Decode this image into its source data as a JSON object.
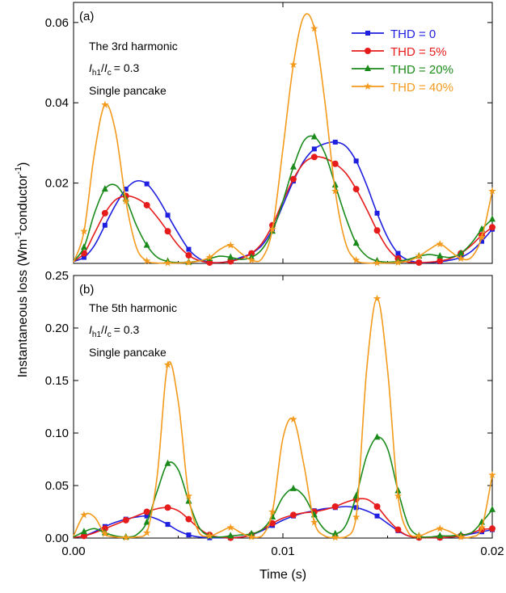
{
  "chart_data": [
    {
      "type": "line",
      "panel_label": "(a)",
      "annotation_lines": [
        "The 3rd harmonic",
        "/ = 0.3",
        "Single pancake"
      ],
      "annotation_ratio": {
        "i1": "I",
        "i1_sub": "h1",
        "i2": "I",
        "i2_sub": "c",
        "value": "= 0.3"
      },
      "xlim": [
        0,
        0.02
      ],
      "ylim": [
        0,
        0.065
      ],
      "yticks": [
        0.02,
        0.04,
        0.06
      ],
      "ytick_labels": [
        "0.02",
        "0.04",
        "0.06"
      ],
      "series": [
        {
          "name": "THD = 0",
          "color": "#1f1fe0",
          "marker": "square",
          "x": [
            0,
            0.0005,
            0.001,
            0.0015,
            0.002,
            0.0025,
            0.003,
            0.0035,
            0.004,
            0.0045,
            0.005,
            0.0055,
            0.006,
            0.0065,
            0.007,
            0.0075,
            0.008,
            0.0085,
            0.009,
            0.0095,
            0.01,
            0.0105,
            0.011,
            0.0115,
            0.012,
            0.0125,
            0.013,
            0.0135,
            0.014,
            0.0145,
            0.015,
            0.0155,
            0.016,
            0.0165,
            0.017,
            0.0175,
            0.018,
            0.0185,
            0.019,
            0.0195,
            0.02
          ],
          "y": [
            0.0005,
            0.0015,
            0.0045,
            0.0095,
            0.0145,
            0.0185,
            0.0205,
            0.0198,
            0.0165,
            0.012,
            0.0075,
            0.0035,
            0.0012,
            0.0003,
            0.0002,
            0.0006,
            0.0015,
            0.0025,
            0.0045,
            0.0085,
            0.0145,
            0.0205,
            0.0255,
            0.0285,
            0.0298,
            0.0302,
            0.0292,
            0.0255,
            0.0195,
            0.0125,
            0.0065,
            0.0025,
            0.0008,
            0.0002,
            0.0002,
            0.0004,
            0.0008,
            0.0015,
            0.003,
            0.0055,
            0.0085
          ]
        },
        {
          "name": "THD = 5%",
          "color": "#e61c1c",
          "marker": "circle",
          "x": [
            0,
            0.0005,
            0.001,
            0.0015,
            0.002,
            0.0025,
            0.003,
            0.0035,
            0.004,
            0.0045,
            0.005,
            0.0055,
            0.006,
            0.0065,
            0.007,
            0.0075,
            0.008,
            0.0085,
            0.009,
            0.0095,
            0.01,
            0.0105,
            0.011,
            0.0115,
            0.012,
            0.0125,
            0.013,
            0.0135,
            0.014,
            0.0145,
            0.015,
            0.0155,
            0.016,
            0.0165,
            0.017,
            0.0175,
            0.018,
            0.0185,
            0.019,
            0.0195,
            0.02
          ],
          "y": [
            0.0005,
            0.0025,
            0.0075,
            0.0125,
            0.0158,
            0.0168,
            0.0162,
            0.0145,
            0.0115,
            0.008,
            0.0045,
            0.002,
            0.0007,
            0.0002,
            0.0002,
            0.0005,
            0.0012,
            0.0025,
            0.005,
            0.0095,
            0.0155,
            0.021,
            0.025,
            0.0265,
            0.0262,
            0.0248,
            0.0225,
            0.0185,
            0.0135,
            0.0082,
            0.0038,
            0.0012,
            0.0003,
            0.0002,
            0.0003,
            0.0006,
            0.0012,
            0.0025,
            0.0045,
            0.007,
            0.009
          ]
        },
        {
          "name": "THD = 20%",
          "color": "#1a8a1a",
          "marker": "triangle",
          "x": [
            0,
            0.0005,
            0.001,
            0.0015,
            0.002,
            0.0025,
            0.003,
            0.0035,
            0.004,
            0.0045,
            0.005,
            0.0055,
            0.006,
            0.0065,
            0.007,
            0.0075,
            0.008,
            0.0085,
            0.009,
            0.0095,
            0.01,
            0.0105,
            0.011,
            0.0115,
            0.012,
            0.0125,
            0.013,
            0.0135,
            0.014,
            0.0145,
            0.015,
            0.0155,
            0.016,
            0.0165,
            0.017,
            0.0175,
            0.018,
            0.0185,
            0.019,
            0.0195,
            0.02
          ],
          "y": [
            0.0005,
            0.004,
            0.0125,
            0.0185,
            0.0195,
            0.016,
            0.0095,
            0.0045,
            0.0015,
            0.0005,
            0.0002,
            0.0003,
            0.0006,
            0.0012,
            0.0018,
            0.0015,
            0.001,
            0.0015,
            0.0035,
            0.008,
            0.0155,
            0.024,
            0.0305,
            0.0315,
            0.0275,
            0.0195,
            0.0115,
            0.005,
            0.0018,
            0.0006,
            0.0003,
            0.0005,
            0.001,
            0.0018,
            0.0022,
            0.0018,
            0.0015,
            0.0025,
            0.005,
            0.0085,
            0.011
          ]
        },
        {
          "name": "THD = 40%",
          "color": "#f39a1c",
          "marker": "star",
          "x": [
            0,
            0.0005,
            0.001,
            0.0015,
            0.002,
            0.0025,
            0.003,
            0.0035,
            0.004,
            0.0045,
            0.005,
            0.0055,
            0.006,
            0.0065,
            0.007,
            0.0075,
            0.008,
            0.0085,
            0.009,
            0.0095,
            0.01,
            0.0105,
            0.011,
            0.0115,
            0.012,
            0.0125,
            0.013,
            0.0135,
            0.014,
            0.0145,
            0.015,
            0.0155,
            0.016,
            0.0165,
            0.017,
            0.0175,
            0.018,
            0.0185,
            0.019,
            0.0195,
            0.02
          ],
          "y": [
            0.0003,
            0.008,
            0.0275,
            0.0395,
            0.033,
            0.0155,
            0.004,
            0.0006,
            0.0001,
            0.0001,
            0.0001,
            0.0002,
            0.0006,
            0.0015,
            0.0035,
            0.0045,
            0.0025,
            0.0008,
            0.0012,
            0.0085,
            0.0285,
            0.0495,
            0.0615,
            0.0585,
            0.0405,
            0.018,
            0.005,
            0.0008,
            0.0001,
            0.0001,
            0.0001,
            0.0002,
            0.0006,
            0.0018,
            0.0035,
            0.0048,
            0.003,
            0.0012,
            0.0015,
            0.0065,
            0.018
          ]
        }
      ]
    },
    {
      "type": "line",
      "panel_label": "(b)",
      "annotation_lines": [
        "The 5th harmonic",
        "/ = 0.3",
        "Single pancake"
      ],
      "annotation_ratio": {
        "i1": "I",
        "i1_sub": "h1",
        "i2": "I",
        "i2_sub": "c",
        "value": "= 0.3"
      },
      "xlim": [
        0,
        0.02
      ],
      "ylim": [
        0,
        0.25
      ],
      "yticks": [
        0,
        0.05,
        0.1,
        0.15,
        0.2,
        0.25
      ],
      "ytick_labels": [
        "0.00",
        "0.05",
        "0.10",
        "0.15",
        "0.20",
        "0.25"
      ],
      "xticks": [
        0,
        0.01,
        0.02
      ],
      "xtick_labels": [
        "0.00",
        "0.01",
        "0.02"
      ],
      "series": [
        {
          "name": "THD = 0",
          "color": "#1f1fe0",
          "marker": "square",
          "x": [
            0,
            0.0005,
            0.001,
            0.0015,
            0.002,
            0.0025,
            0.003,
            0.0035,
            0.004,
            0.0045,
            0.005,
            0.0055,
            0.006,
            0.0065,
            0.007,
            0.0075,
            0.008,
            0.0085,
            0.009,
            0.0095,
            0.01,
            0.0105,
            0.011,
            0.0115,
            0.012,
            0.0125,
            0.013,
            0.0135,
            0.014,
            0.0145,
            0.015,
            0.0155,
            0.016,
            0.0165,
            0.017,
            0.0175,
            0.018,
            0.0185,
            0.019,
            0.0195,
            0.02
          ],
          "y": [
            0.0005,
            0.002,
            0.006,
            0.011,
            0.015,
            0.018,
            0.02,
            0.021,
            0.018,
            0.013,
            0.007,
            0.003,
            0.001,
            0.0003,
            0.0002,
            0.0003,
            0.001,
            0.003,
            0.007,
            0.012,
            0.017,
            0.021,
            0.024,
            0.026,
            0.028,
            0.029,
            0.03,
            0.029,
            0.026,
            0.021,
            0.014,
            0.007,
            0.002,
            0.0005,
            0.0002,
            0.0003,
            0.001,
            0.002,
            0.004,
            0.006,
            0.008
          ]
        },
        {
          "name": "THD = 5%",
          "color": "#e61c1c",
          "marker": "circle",
          "x": [
            0,
            0.0005,
            0.001,
            0.0015,
            0.002,
            0.0025,
            0.003,
            0.0035,
            0.004,
            0.0045,
            0.005,
            0.0055,
            0.006,
            0.0065,
            0.007,
            0.0075,
            0.008,
            0.0085,
            0.009,
            0.0095,
            0.01,
            0.0105,
            0.011,
            0.0115,
            0.012,
            0.0125,
            0.013,
            0.0135,
            0.014,
            0.0145,
            0.015,
            0.0155,
            0.016,
            0.0165,
            0.017,
            0.0175,
            0.018,
            0.0185,
            0.019,
            0.0195,
            0.02
          ],
          "y": [
            0.0005,
            0.002,
            0.005,
            0.009,
            0.013,
            0.017,
            0.021,
            0.025,
            0.028,
            0.029,
            0.026,
            0.018,
            0.009,
            0.003,
            0.0008,
            0.0003,
            0.0008,
            0.003,
            0.008,
            0.014,
            0.019,
            0.022,
            0.024,
            0.025,
            0.027,
            0.03,
            0.034,
            0.037,
            0.037,
            0.03,
            0.018,
            0.008,
            0.002,
            0.0005,
            0.0003,
            0.0005,
            0.001,
            0.002,
            0.005,
            0.008,
            0.009
          ]
        },
        {
          "name": "THD = 20%",
          "color": "#1a8a1a",
          "marker": "triangle",
          "x": [
            0,
            0.0005,
            0.001,
            0.0015,
            0.002,
            0.0025,
            0.003,
            0.0035,
            0.004,
            0.0045,
            0.005,
            0.0055,
            0.006,
            0.0065,
            0.007,
            0.0075,
            0.008,
            0.0085,
            0.009,
            0.0095,
            0.01,
            0.0105,
            0.011,
            0.0115,
            0.012,
            0.0125,
            0.013,
            0.0135,
            0.014,
            0.0145,
            0.015,
            0.0155,
            0.016,
            0.0165,
            0.017,
            0.0175,
            0.018,
            0.0185,
            0.019,
            0.0195,
            0.02
          ],
          "y": [
            0.001,
            0.006,
            0.009,
            0.005,
            0.002,
            0.001,
            0.003,
            0.015,
            0.045,
            0.071,
            0.065,
            0.035,
            0.01,
            0.002,
            0.001,
            0.002,
            0.003,
            0.004,
            0.008,
            0.02,
            0.039,
            0.047,
            0.04,
            0.022,
            0.008,
            0.004,
            0.012,
            0.04,
            0.078,
            0.096,
            0.085,
            0.045,
            0.012,
            0.002,
            0.001,
            0.002,
            0.002,
            0.003,
            0.005,
            0.015,
            0.027
          ]
        },
        {
          "name": "THD = 40%",
          "color": "#f39a1c",
          "marker": "star",
          "x": [
            0,
            0.0005,
            0.001,
            0.0015,
            0.002,
            0.0025,
            0.003,
            0.0035,
            0.004,
            0.0045,
            0.005,
            0.0055,
            0.006,
            0.0065,
            0.007,
            0.0075,
            0.008,
            0.0085,
            0.009,
            0.0095,
            0.01,
            0.0105,
            0.011,
            0.0115,
            0.012,
            0.0125,
            0.013,
            0.0135,
            0.014,
            0.0145,
            0.015,
            0.0155,
            0.016,
            0.0165,
            0.017,
            0.0175,
            0.018,
            0.0185,
            0.019,
            0.0195,
            0.02
          ],
          "y": [
            0.002,
            0.022,
            0.02,
            0.004,
            0.001,
            0.0005,
            0.001,
            0.005,
            0.06,
            0.165,
            0.13,
            0.04,
            0.005,
            0.002,
            0.006,
            0.01,
            0.005,
            0.001,
            0.002,
            0.025,
            0.095,
            0.113,
            0.07,
            0.015,
            0.002,
            0.0005,
            0.001,
            0.02,
            0.16,
            0.228,
            0.16,
            0.04,
            0.005,
            0.002,
            0.006,
            0.009,
            0.006,
            0.001,
            0.001,
            0.01,
            0.06
          ]
        }
      ]
    }
  ],
  "labels": {
    "ylabel_main": "Instantaneous loss (Wm",
    "ylabel_sup1": "-1",
    "ylabel_mid": "conductor",
    "ylabel_sup2": "-1",
    "ylabel_end": ")",
    "xlabel": "Time (s)"
  },
  "legend": {
    "entries": [
      "THD = 0",
      "THD = 5%",
      "THD = 20%",
      "THD = 40%"
    ]
  }
}
